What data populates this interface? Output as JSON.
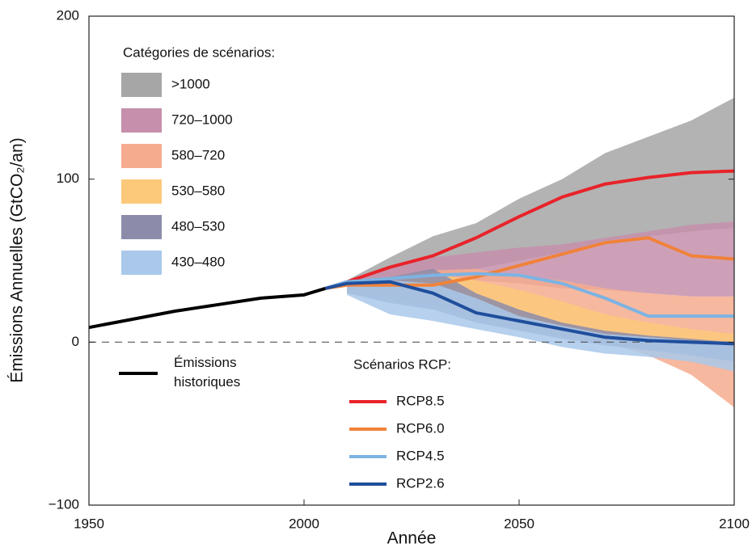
{
  "chart_data": {
    "type": "line",
    "ylabel": "Émissions Annuelles (GtCO₂/an)",
    "xlabel": "Année",
    "xlim": [
      1950,
      2100
    ],
    "xticks": [
      1950,
      2000,
      2050,
      2100
    ],
    "ylim": [
      -100,
      200
    ],
    "yticks": [
      {
        "value": -100,
        "label": "−100"
      },
      0,
      100,
      200
    ],
    "reference_line": 0,
    "bands_title": "Catégories de scénarios:",
    "series_title": "Scénarios RCP:",
    "band_x": [
      2010,
      2020,
      2030,
      2040,
      2050,
      2060,
      2070,
      2080,
      2090,
      2100
    ],
    "bands": [
      {
        "name": ">1000",
        "color": "#a6a6a6",
        "lower": [
          32,
          35,
          40,
          45,
          50,
          55,
          62,
          65,
          68,
          70
        ],
        "upper": [
          38,
          52,
          65,
          73,
          88,
          100,
          116,
          126,
          136,
          150
        ]
      },
      {
        "name": "720–1000",
        "color": "#c68fab",
        "lower": [
          31,
          33,
          35,
          38,
          36,
          33,
          32,
          30,
          28,
          28
        ],
        "upper": [
          37,
          47,
          52,
          55,
          58,
          60,
          64,
          68,
          72,
          74
        ]
      },
      {
        "name": "580–720",
        "color": "#f5ab8e",
        "lower": [
          30,
          28,
          25,
          18,
          12,
          5,
          0,
          -8,
          -20,
          -40
        ],
        "upper": [
          36,
          40,
          44,
          45,
          40,
          38,
          33,
          30,
          28,
          28
        ]
      },
      {
        "name": "530–580",
        "color": "#fcc97a",
        "lower": [
          30,
          27,
          22,
          15,
          8,
          3,
          0,
          -3,
          -5,
          -10
        ],
        "upper": [
          36,
          40,
          42,
          38,
          32,
          25,
          17,
          12,
          8,
          5
        ]
      },
      {
        "name": "480–530",
        "color": "#8c8caa",
        "lower": [
          30,
          24,
          20,
          12,
          7,
          2,
          -2,
          -5,
          -8,
          -12
        ],
        "upper": [
          36,
          40,
          45,
          30,
          20,
          12,
          7,
          4,
          2,
          0
        ]
      },
      {
        "name": "430–480",
        "color": "#a9c8ea",
        "lower": [
          29,
          17,
          13,
          8,
          3,
          -3,
          -7,
          -9,
          -12,
          -18
        ],
        "upper": [
          36,
          38,
          36,
          27,
          16,
          10,
          5,
          3,
          1,
          -1
        ]
      }
    ],
    "series": [
      {
        "name": "Émissions historiques",
        "color": "#000000",
        "x": [
          1950,
          1960,
          1970,
          1980,
          1990,
          2000,
          2005
        ],
        "values": [
          9,
          14,
          19,
          23,
          27,
          29,
          33
        ]
      },
      {
        "name": "RCP8.5",
        "color": "#e8232a",
        "x": [
          2005,
          2010,
          2020,
          2030,
          2040,
          2050,
          2060,
          2070,
          2080,
          2090,
          2100
        ],
        "values": [
          33,
          37,
          46,
          53,
          64,
          77,
          89,
          97,
          101,
          104,
          105
        ]
      },
      {
        "name": "RCP6.0",
        "color": "#f0823a",
        "x": [
          2005,
          2010,
          2020,
          2030,
          2040,
          2050,
          2060,
          2070,
          2080,
          2090,
          2100
        ],
        "values": [
          33,
          35,
          35,
          35,
          40,
          47,
          54,
          61,
          64,
          53,
          51
        ]
      },
      {
        "name": "RCP4.5",
        "color": "#7db3e3",
        "x": [
          2005,
          2010,
          2020,
          2030,
          2040,
          2050,
          2060,
          2070,
          2080,
          2090,
          2100
        ],
        "values": [
          33,
          37,
          39,
          41,
          42,
          41,
          36,
          27,
          16,
          16,
          16
        ]
      },
      {
        "name": "RCP2.6",
        "color": "#1f4e9c",
        "x": [
          2005,
          2010,
          2020,
          2030,
          2040,
          2050,
          2060,
          2070,
          2080,
          2090,
          2100
        ],
        "values": [
          33,
          36,
          37,
          30,
          18,
          13,
          8,
          3,
          1,
          0,
          -1
        ]
      }
    ]
  }
}
